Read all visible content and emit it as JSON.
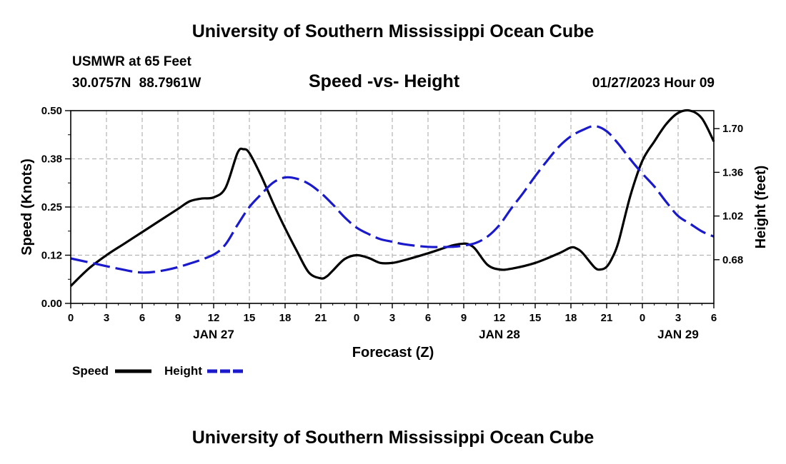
{
  "header": {
    "title": "University of Southern Mississippi Ocean Cube",
    "station": "USMWR at 65 Feet",
    "coordinates": "30.0757N 88.7961W",
    "subtitle": "Speed -vs- Height",
    "datetime": "01/27/2023 Hour 09"
  },
  "footer": {
    "title": "University of Southern Mississippi Ocean Cube"
  },
  "chart_data": {
    "type": "line",
    "title": "Speed -vs- Height",
    "xlabel": "Forecast (Z)",
    "ylabel": "Speed (Knots)",
    "y2label": "Height (feet)",
    "x_ticks": [
      "0",
      "3",
      "6",
      "9",
      "12",
      "15",
      "18",
      "21",
      "0",
      "3",
      "6",
      "9",
      "12",
      "15",
      "18",
      "21",
      "0",
      "3",
      "6"
    ],
    "x_hours": [
      0,
      3,
      6,
      9,
      12,
      15,
      18,
      21,
      24,
      27,
      30,
      33,
      36,
      39,
      42,
      45,
      48,
      51,
      54
    ],
    "day_labels": [
      {
        "label": "JAN 27",
        "hour": 12
      },
      {
        "label": "JAN 28",
        "hour": 36
      },
      {
        "label": "JAN 29",
        "hour": 51
      }
    ],
    "xlim": [
      0,
      54
    ],
    "ylim": [
      0,
      0.5
    ],
    "y_ticks": [
      "0.00",
      "0.12",
      "0.25",
      "0.38",
      "0.50"
    ],
    "y_tick_values": [
      0,
      0.125,
      0.25,
      0.375,
      0.5
    ],
    "y2lim": [
      0.34,
      1.84
    ],
    "y2_ticks": [
      "0.68",
      "1.02",
      "1.36",
      "1.70"
    ],
    "y2_tick_values": [
      0.68,
      1.02,
      1.36,
      1.7
    ],
    "grid": true,
    "legend_position": "bottom-left",
    "series": [
      {
        "name": "Speed",
        "axis": "left",
        "color": "#000000",
        "dash": "solid",
        "x": [
          0,
          1.5,
          3,
          4.5,
          6,
          7.5,
          9,
          10,
          11,
          12,
          13,
          14,
          14.5,
          15,
          16,
          17,
          18,
          19,
          20,
          21,
          21.5,
          22,
          23,
          24,
          25,
          26,
          27,
          28,
          30,
          32,
          33,
          33.5,
          34,
          35,
          36,
          37,
          39,
          41,
          42,
          42.5,
          43,
          44,
          44.5,
          45,
          45.5,
          46,
          47,
          48,
          49,
          50,
          51,
          52,
          53,
          54
        ],
        "values": [
          0.045,
          0.09,
          0.125,
          0.155,
          0.185,
          0.215,
          0.245,
          0.265,
          0.272,
          0.275,
          0.3,
          0.39,
          0.4,
          0.39,
          0.33,
          0.26,
          0.195,
          0.135,
          0.08,
          0.065,
          0.07,
          0.085,
          0.115,
          0.125,
          0.118,
          0.105,
          0.105,
          0.112,
          0.13,
          0.15,
          0.155,
          0.152,
          0.14,
          0.1,
          0.088,
          0.09,
          0.105,
          0.13,
          0.145,
          0.142,
          0.13,
          0.093,
          0.088,
          0.095,
          0.12,
          0.16,
          0.28,
          0.37,
          0.42,
          0.465,
          0.494,
          0.5,
          0.48,
          0.42
        ]
      },
      {
        "name": "Height",
        "axis": "right",
        "color": "#1a1acc",
        "dash": "dashed",
        "x": [
          0,
          2,
          4,
          6,
          8,
          10,
          12,
          13,
          14,
          15,
          16,
          17,
          18,
          19,
          20,
          21,
          22,
          23,
          24,
          25,
          26,
          27,
          28,
          30,
          32,
          33,
          34,
          35,
          36,
          37,
          38,
          39,
          40,
          41,
          42,
          43,
          44,
          45,
          46,
          47,
          48,
          49,
          50,
          51,
          52,
          53,
          54
        ],
        "values": [
          0.69,
          0.65,
          0.61,
          0.58,
          0.6,
          0.65,
          0.72,
          0.8,
          0.95,
          1.09,
          1.19,
          1.28,
          1.32,
          1.31,
          1.27,
          1.2,
          1.11,
          1.01,
          0.93,
          0.88,
          0.84,
          0.82,
          0.8,
          0.78,
          0.78,
          0.79,
          0.81,
          0.86,
          0.95,
          1.08,
          1.2,
          1.33,
          1.45,
          1.56,
          1.64,
          1.69,
          1.72,
          1.68,
          1.58,
          1.46,
          1.35,
          1.25,
          1.13,
          1.02,
          0.96,
          0.9,
          0.86
        ]
      }
    ]
  },
  "legend": [
    {
      "label": "Speed",
      "color": "#000000"
    },
    {
      "label": "Height",
      "color": "#1a1acc"
    }
  ]
}
